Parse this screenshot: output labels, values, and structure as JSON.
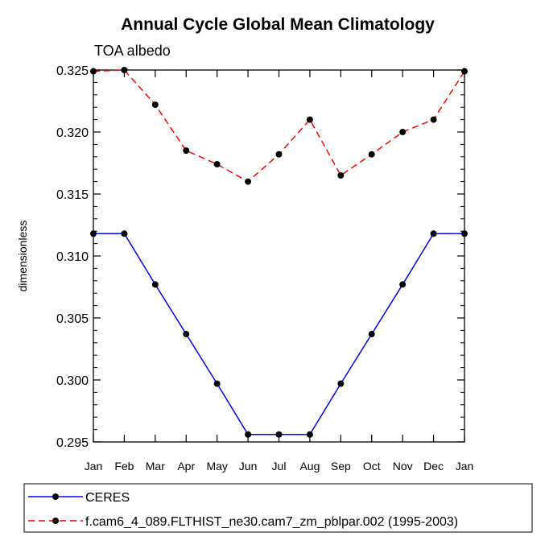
{
  "chart_data": {
    "type": "line",
    "title": "Annual Cycle Global Mean Climatology",
    "subtitle": "TOA albedo",
    "xlabel": "",
    "ylabel": "dimensionless",
    "categories": [
      "Jan",
      "Feb",
      "Mar",
      "Apr",
      "May",
      "Jun",
      "Jul",
      "Aug",
      "Sep",
      "Oct",
      "Nov",
      "Dec",
      "Jan"
    ],
    "ylim": [
      0.295,
      0.325
    ],
    "yticks": [
      "0.295",
      "0.300",
      "0.305",
      "0.310",
      "0.315",
      "0.320",
      "0.325"
    ],
    "y_minor_step": 0.001,
    "grid": false,
    "legend_position": "bottom",
    "series": [
      {
        "name": "CERES",
        "color": "#0000ff",
        "dash": "solid",
        "marker": "circle",
        "values": [
          0.3118,
          0.3118,
          0.3077,
          0.3037,
          0.2997,
          0.2956,
          0.2956,
          0.2956,
          0.2997,
          0.3037,
          0.3077,
          0.3118,
          0.3118
        ]
      },
      {
        "name": "f.cam6_4_089.FLTHIST_ne30.cam7_zm_pblpar.002 (1995-2003)",
        "color": "#ff0000",
        "dash": "dashed",
        "marker": "circle",
        "values": [
          0.3249,
          0.325,
          0.3222,
          0.3185,
          0.3174,
          0.316,
          0.3182,
          0.321,
          0.3165,
          0.3182,
          0.32,
          0.321,
          0.3249
        ]
      }
    ]
  }
}
